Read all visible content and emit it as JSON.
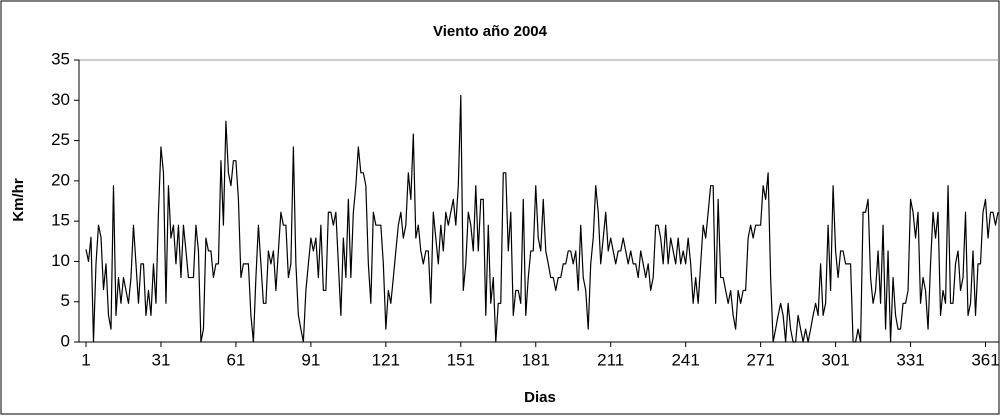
{
  "chart_data": {
    "type": "line",
    "title": "Viento  año 2004",
    "xlabel": "Dias",
    "ylabel": "Km/hr",
    "color": "#000000",
    "grid": false,
    "xlim": [
      1,
      366
    ],
    "ylim": [
      0,
      35
    ],
    "xticks": [
      1,
      31,
      61,
      91,
      121,
      151,
      181,
      211,
      241,
      271,
      301,
      331,
      361
    ],
    "yticks": [
      0,
      5,
      10,
      15,
      20,
      25,
      30,
      35
    ],
    "x": [
      1,
      2,
      3,
      4,
      5,
      6,
      7,
      8,
      9,
      10,
      11,
      12,
      13,
      14,
      15,
      16,
      17,
      18,
      19,
      20,
      21,
      22,
      23,
      24,
      25,
      26,
      27,
      28,
      29,
      30,
      31,
      32,
      33,
      34,
      35,
      36,
      37,
      38,
      39,
      40,
      41,
      42,
      43,
      44,
      45,
      46,
      47,
      48,
      49,
      50,
      51,
      52,
      53,
      54,
      55,
      56,
      57,
      58,
      59,
      60,
      61,
      62,
      63,
      64,
      65,
      66,
      67,
      68,
      69,
      70,
      71,
      72,
      73,
      74,
      75,
      76,
      77,
      78,
      79,
      80,
      81,
      82,
      83,
      84,
      85,
      86,
      87,
      88,
      89,
      90,
      91,
      92,
      93,
      94,
      95,
      96,
      97,
      98,
      99,
      100,
      101,
      102,
      103,
      104,
      105,
      106,
      107,
      108,
      109,
      110,
      111,
      112,
      113,
      114,
      115,
      116,
      117,
      118,
      119,
      120,
      121,
      122,
      123,
      124,
      125,
      126,
      127,
      128,
      129,
      130,
      131,
      132,
      133,
      134,
      135,
      136,
      137,
      138,
      139,
      140,
      141,
      142,
      143,
      144,
      145,
      146,
      147,
      148,
      149,
      150,
      151,
      152,
      153,
      154,
      155,
      156,
      157,
      158,
      159,
      160,
      161,
      162,
      163,
      164,
      165,
      166,
      167,
      168,
      169,
      170,
      171,
      172,
      173,
      174,
      175,
      176,
      177,
      178,
      179,
      180,
      181,
      182,
      183,
      184,
      185,
      186,
      187,
      188,
      189,
      190,
      191,
      192,
      193,
      194,
      195,
      196,
      197,
      198,
      199,
      200,
      201,
      202,
      203,
      204,
      205,
      206,
      207,
      208,
      209,
      210,
      211,
      212,
      213,
      214,
      215,
      216,
      217,
      218,
      219,
      220,
      221,
      222,
      223,
      224,
      225,
      226,
      227,
      228,
      229,
      230,
      231,
      232,
      233,
      234,
      235,
      236,
      237,
      238,
      239,
      240,
      241,
      242,
      243,
      244,
      245,
      246,
      247,
      248,
      249,
      250,
      251,
      252,
      253,
      254,
      255,
      256,
      257,
      258,
      259,
      260,
      261,
      262,
      263,
      264,
      265,
      266,
      267,
      268,
      269,
      270,
      271,
      272,
      273,
      274,
      275,
      276,
      277,
      278,
      279,
      280,
      281,
      282,
      283,
      284,
      285,
      286,
      287,
      288,
      289,
      290,
      291,
      292,
      293,
      294,
      295,
      296,
      297,
      298,
      299,
      300,
      301,
      302,
      303,
      304,
      305,
      306,
      307,
      308,
      309,
      310,
      311,
      312,
      313,
      314,
      315,
      316,
      317,
      318,
      319,
      320,
      321,
      322,
      323,
      324,
      325,
      326,
      327,
      328,
      329,
      330,
      331,
      332,
      333,
      334,
      335,
      336,
      337,
      338,
      339,
      340,
      341,
      342,
      343,
      344,
      345,
      346,
      347,
      348,
      349,
      350,
      351,
      352,
      353,
      354,
      355,
      356,
      357,
      358,
      359,
      360,
      361,
      362,
      363,
      364,
      365,
      366
    ],
    "values": [
      11.5,
      10,
      13,
      0,
      9.7,
      14.5,
      13,
      6.5,
      9.7,
      3.3,
      1.6,
      19.4,
      3.3,
      8,
      4.8,
      8,
      6.4,
      4.8,
      8,
      14.5,
      9.7,
      4.8,
      9.7,
      9.7,
      3.3,
      6.4,
      3.3,
      9.7,
      4.8,
      16.1,
      24.2,
      21,
      4.8,
      19.4,
      12.9,
      14.5,
      9.7,
      14.5,
      8,
      14.5,
      11.3,
      8,
      8,
      8,
      14.5,
      11.3,
      0,
      1.6,
      12.9,
      11.3,
      11.3,
      8,
      9.7,
      9.7,
      22.5,
      14.5,
      27.4,
      21,
      19.4,
      22.5,
      22.5,
      17.7,
      8,
      9.7,
      9.7,
      9.7,
      3.3,
      0,
      8,
      14.5,
      9.7,
      4.8,
      4.8,
      11.3,
      9.7,
      11.3,
      6.4,
      11.3,
      16.1,
      14.5,
      14.5,
      8,
      9.7,
      24.2,
      9.7,
      3.3,
      1.6,
      0,
      6.4,
      9.7,
      12.9,
      11.3,
      12.9,
      8,
      14.5,
      6.4,
      6.4,
      16.1,
      16.1,
      14.5,
      16.1,
      9.7,
      3.3,
      12.9,
      8,
      17.7,
      8,
      16.1,
      19.4,
      24.2,
      21,
      21,
      19.4,
      9.7,
      4.8,
      16.1,
      14.5,
      14.5,
      14.5,
      9.7,
      1.6,
      6.4,
      4.8,
      8,
      11.3,
      14.5,
      16.1,
      12.9,
      14.5,
      21,
      17.7,
      25.8,
      12.9,
      14.5,
      11.3,
      9.7,
      11.3,
      11.3,
      4.8,
      16.1,
      12.9,
      9.7,
      14.5,
      11.3,
      16.1,
      14.5,
      16.1,
      17.7,
      14.5,
      19.4,
      30.6,
      6.4,
      9.7,
      16.1,
      14.5,
      11.3,
      19.4,
      11.3,
      17.7,
      17.7,
      3.3,
      14.5,
      4.8,
      8,
      0,
      4.8,
      4.8,
      21,
      21,
      11.3,
      16.1,
      3.3,
      6.4,
      6.4,
      4.8,
      17.7,
      3.3,
      8,
      11.3,
      11.3,
      19.4,
      12.9,
      11.3,
      17.7,
      11.3,
      9.7,
      8,
      8,
      6.4,
      8,
      8,
      9.7,
      9.7,
      11.3,
      11.3,
      9.7,
      11.3,
      6.4,
      14.5,
      8,
      6.4,
      1.6,
      9.7,
      12.9,
      19.4,
      16.1,
      9.7,
      12.9,
      16.1,
      11.3,
      12.9,
      11.3,
      9.7,
      11.3,
      11.3,
      12.9,
      11.3,
      9.7,
      11.3,
      9.7,
      9.7,
      8,
      11.3,
      9.7,
      8,
      9.7,
      6.4,
      8,
      14.5,
      14.5,
      12.9,
      9.7,
      14.5,
      9.7,
      12.9,
      11.3,
      9.7,
      12.9,
      9.7,
      11.3,
      9.7,
      12.9,
      9.7,
      4.8,
      8,
      4.8,
      9.7,
      14.5,
      12.9,
      16.1,
      19.4,
      19.4,
      4.8,
      17.7,
      8,
      8,
      6.4,
      4.8,
      6.4,
      3.3,
      1.6,
      6.4,
      4.8,
      6.4,
      6.4,
      12.9,
      14.5,
      12.9,
      14.5,
      14.5,
      14.5,
      19.4,
      17.7,
      21,
      8,
      0,
      1.6,
      3.3,
      4.8,
      3.3,
      0,
      4.8,
      1.6,
      0,
      0,
      3.3,
      1.6,
      0,
      1.6,
      0,
      1.6,
      3.3,
      4.8,
      3.3,
      9.7,
      3.3,
      4.8,
      14.5,
      6.4,
      19.4,
      11.3,
      8,
      11.3,
      11.3,
      9.7,
      9.7,
      9.7,
      0,
      0,
      1.6,
      0,
      16.1,
      16.1,
      17.7,
      8,
      4.8,
      6.4,
      11.3,
      4.8,
      14.5,
      1.6,
      11.3,
      0,
      8,
      3.3,
      1.6,
      1.6,
      4.8,
      4.8,
      6.4,
      17.7,
      16.1,
      12.9,
      16.1,
      4.8,
      8,
      6.4,
      1.6,
      9.7,
      16.1,
      12.9,
      16.1,
      3.3,
      6.4,
      4.8,
      19.4,
      4.8,
      4.8,
      9.7,
      11.3,
      6.4,
      8,
      16.1,
      3.3,
      4.8,
      11.3,
      3.3,
      9.7,
      9.7,
      16.1,
      17.7,
      12.9,
      16.1,
      16.1,
      14.5,
      16.1
    ]
  }
}
